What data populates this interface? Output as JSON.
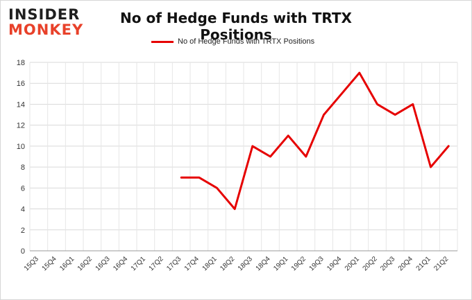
{
  "logo": {
    "line1": "INSIDER",
    "line2": "MONKEY"
  },
  "chart_data": {
    "type": "line",
    "title": "No of Hedge Funds with TRTX Positions",
    "xlabel": "",
    "ylabel": "",
    "categories": [
      "15Q3",
      "15Q4",
      "16Q1",
      "16Q2",
      "16Q3",
      "16Q4",
      "17Q1",
      "17Q2",
      "17Q3",
      "17Q4",
      "18Q1",
      "18Q2",
      "18Q3",
      "18Q4",
      "19Q1",
      "19Q2",
      "19Q3",
      "19Q4",
      "20Q1",
      "20Q2",
      "20Q3",
      "20Q4",
      "21Q1",
      "21Q2"
    ],
    "series": [
      {
        "name": "No of Hedge Funds with TRTX Positions",
        "color": "#e60000",
        "values": [
          null,
          null,
          null,
          null,
          null,
          null,
          null,
          null,
          7,
          7,
          6,
          4,
          10,
          9,
          11,
          9,
          13,
          15,
          17,
          14,
          13,
          14,
          8,
          10
        ]
      }
    ],
    "ylim": [
      0,
      18
    ],
    "yticks": [
      0,
      2,
      4,
      6,
      8,
      10,
      12,
      14,
      16,
      18
    ],
    "grid": true,
    "legend_position": "top-center"
  }
}
